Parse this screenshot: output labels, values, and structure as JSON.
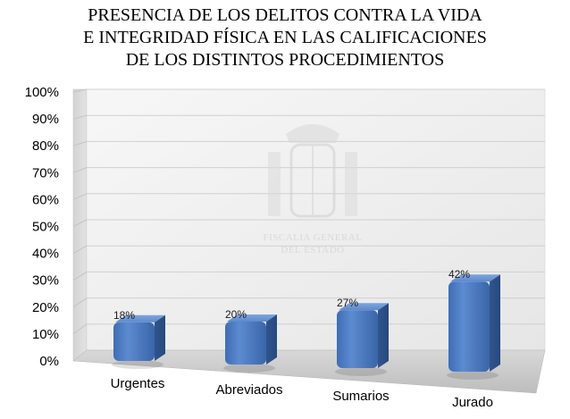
{
  "chart_data": {
    "type": "bar",
    "title_lines": [
      "PRESENCIA DE LOS DELITOS CONTRA LA VIDA",
      "E INTEGRIDAD FÍSICA EN LAS CALIFICACIONES",
      "DE LOS DISTINTOS PROCEDIMIENTOS"
    ],
    "categories": [
      "Urgentes",
      "Abreviados",
      "Sumarios",
      "Jurado"
    ],
    "values": [
      18,
      20,
      27,
      42
    ],
    "data_labels": [
      "18%",
      "20%",
      "27%",
      "42%"
    ],
    "y_ticks": [
      "0%",
      "10%",
      "20%",
      "30%",
      "40%",
      "50%",
      "60%",
      "70%",
      "80%",
      "90%",
      "100%"
    ],
    "ylim": [
      0,
      100
    ],
    "grid": true,
    "style": "3d",
    "bar_color": "#4a77bd",
    "watermark": {
      "line1": "FISCALIA GENERAL",
      "line2": "DEL ESTADO"
    }
  }
}
